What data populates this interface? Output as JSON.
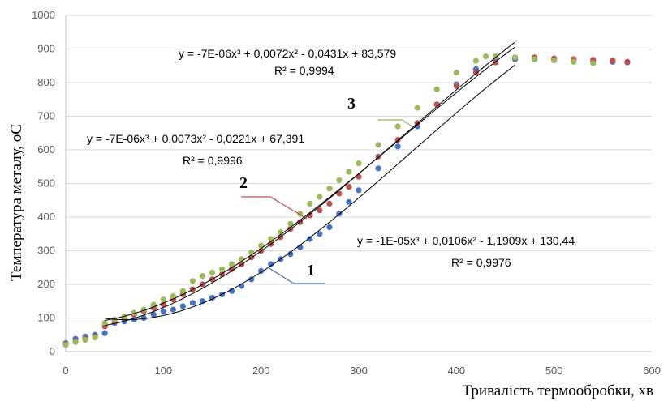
{
  "chart_data": {
    "type": "scatter",
    "xlabel": "Тривалість термообробки, хв",
    "ylabel": "Температура   металу, оС",
    "xlim": [
      0,
      600
    ],
    "ylim": [
      0,
      1000
    ],
    "x_ticks": [
      "0",
      "100",
      "200",
      "300",
      "400",
      "500",
      "600"
    ],
    "y_ticks": [
      "0",
      "100",
      "200",
      "300",
      "400",
      "500",
      "600",
      "700",
      "800",
      "900",
      "1000"
    ],
    "grid": "horizontal",
    "legend": "none",
    "series": [
      {
        "name": "1",
        "color": "#4472C4",
        "x": [
          0,
          10,
          20,
          30,
          40,
          50,
          60,
          70,
          80,
          90,
          100,
          110,
          120,
          130,
          140,
          150,
          160,
          170,
          180,
          190,
          200,
          210,
          220,
          230,
          240,
          250,
          260,
          270,
          280,
          290,
          300,
          320,
          340,
          360,
          380,
          400,
          420,
          440,
          460,
          480,
          500,
          520,
          540,
          560,
          575
        ],
        "y": [
          25,
          38,
          45,
          50,
          55,
          85,
          90,
          95,
          100,
          110,
          120,
          125,
          135,
          145,
          150,
          160,
          170,
          180,
          195,
          215,
          240,
          260,
          275,
          290,
          310,
          335,
          350,
          370,
          410,
          445,
          480,
          545,
          610,
          670,
          735,
          795,
          840,
          865,
          870,
          870,
          868,
          866,
          864,
          862,
          860
        ],
        "trend": {
          "label": "y = -1E-05x³ + 0,0106x² - 1,1909x + 130,44",
          "r2": "R² = 0,9976",
          "coeffs": [
            130.44,
            -1.1909,
            0.0106,
            -1e-05
          ]
        }
      },
      {
        "name": "2",
        "color": "#C0504D",
        "x": [
          0,
          10,
          20,
          30,
          40,
          50,
          60,
          70,
          80,
          90,
          100,
          110,
          120,
          130,
          140,
          150,
          160,
          170,
          180,
          190,
          200,
          210,
          220,
          230,
          240,
          250,
          260,
          270,
          280,
          290,
          300,
          320,
          340,
          360,
          380,
          400,
          420,
          440,
          460,
          480,
          500,
          520,
          540,
          560,
          575
        ],
        "y": [
          22,
          30,
          38,
          45,
          75,
          90,
          100,
          110,
          120,
          130,
          140,
          155,
          170,
          185,
          200,
          215,
          230,
          245,
          260,
          280,
          300,
          320,
          340,
          365,
          385,
          405,
          420,
          440,
          470,
          490,
          520,
          580,
          630,
          680,
          735,
          790,
          830,
          860,
          875,
          875,
          872,
          870,
          868,
          865,
          862
        ],
        "trend": {
          "label": "y = -7E-06x³ + 0,0073x² - 0,0221x + 67,391",
          "r2": "R² = 0,9996",
          "coeffs": [
            67.391,
            -0.0221,
            0.0073,
            -7e-06
          ]
        }
      },
      {
        "name": "3",
        "color": "#9BBB59",
        "x": [
          0,
          10,
          20,
          30,
          40,
          50,
          60,
          70,
          80,
          90,
          100,
          110,
          120,
          130,
          140,
          150,
          160,
          170,
          180,
          190,
          200,
          210,
          220,
          230,
          240,
          250,
          260,
          270,
          280,
          290,
          300,
          320,
          340,
          360,
          380,
          400,
          420,
          430,
          440,
          460,
          480,
          500,
          520,
          540
        ],
        "y": [
          20,
          28,
          35,
          42,
          85,
          95,
          105,
          115,
          125,
          140,
          155,
          165,
          180,
          210,
          225,
          235,
          245,
          260,
          275,
          295,
          315,
          335,
          355,
          380,
          410,
          440,
          460,
          485,
          510,
          535,
          560,
          615,
          670,
          725,
          780,
          830,
          865,
          878,
          878,
          875,
          870,
          866,
          862,
          858
        ],
        "trend": {
          "label": "y = -7E-06x³ + 0,0072x² - 0,0431x + 83,579",
          "r2": "R² = 0,9994",
          "coeffs": [
            83.579,
            -0.0431,
            0.0072,
            -7e-06
          ]
        }
      }
    ]
  }
}
